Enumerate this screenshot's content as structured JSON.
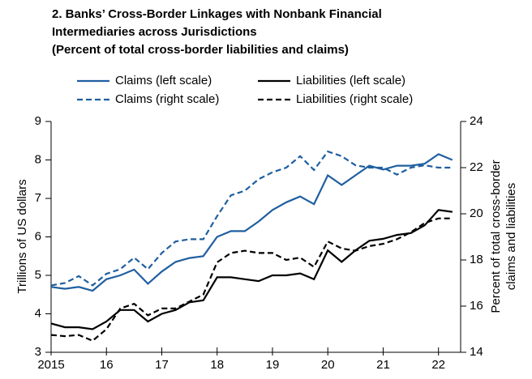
{
  "chart_data": {
    "type": "line",
    "title": [
      "2. Banks’ Cross-Border Linkages with Nonbank Financial",
      "Intermediaries across Jurisdictions",
      "(Percent of total cross-border liabilities and claims)"
    ],
    "ylabel": "Trillions of US dollars",
    "y2label": [
      "Percent of total cross-border",
      "claims and liabilities"
    ],
    "x": [
      2015,
      2015.25,
      2015.5,
      2015.75,
      2016,
      2016.25,
      2016.5,
      2016.75,
      2017,
      2017.25,
      2017.5,
      2017.75,
      2018,
      2018.25,
      2018.5,
      2018.75,
      2019,
      2019.25,
      2019.5,
      2019.75,
      2020,
      2020.25,
      2020.5,
      2020.75,
      2021,
      2021.25,
      2021.5,
      2021.75,
      2022,
      2022.25
    ],
    "xlim": [
      2015,
      2022.4
    ],
    "xticks": [
      2015,
      {
        "value": 2016,
        "label": "16"
      },
      {
        "value": 2017,
        "label": "17"
      },
      {
        "value": 2018,
        "label": "18"
      },
      {
        "value": 2019,
        "label": "19"
      },
      {
        "value": 2020,
        "label": "20"
      },
      {
        "value": 2021,
        "label": "21"
      },
      {
        "value": 2022,
        "label": "22"
      }
    ],
    "ylim": [
      3,
      9
    ],
    "yticks": [
      3,
      4,
      5,
      6,
      7,
      8,
      9
    ],
    "y2lim": [
      14,
      24
    ],
    "y2ticks": [
      14,
      16,
      18,
      20,
      22,
      24
    ],
    "legend": "top",
    "series": [
      {
        "name": "Claims (left scale)",
        "color": "#1f5fa0",
        "dashed": false,
        "values": [
          4.7,
          4.65,
          4.7,
          4.6,
          4.9,
          5.0,
          5.15,
          4.78,
          5.1,
          5.35,
          5.45,
          5.5,
          6.0,
          6.15,
          6.15,
          6.4,
          6.7,
          6.9,
          7.05,
          6.85,
          7.6,
          7.35,
          7.6,
          7.85,
          7.75,
          7.85,
          7.85,
          7.9,
          8.15,
          8.0
        ]
      },
      {
        "name": "Liabilities (left scale)",
        "color": "#000000",
        "dashed": false,
        "values": [
          3.75,
          3.65,
          3.65,
          3.6,
          3.8,
          4.1,
          4.1,
          3.8,
          4.0,
          4.1,
          4.3,
          4.35,
          4.95,
          4.95,
          4.9,
          4.85,
          5.0,
          5.0,
          5.05,
          4.9,
          5.65,
          5.35,
          5.65,
          5.9,
          5.95,
          6.05,
          6.1,
          6.3,
          6.7,
          6.65
        ]
      },
      {
        "name": "Claims (right scale)",
        "color": "#1f5fa0",
        "dashed": true,
        "axis": "y2",
        "values": [
          16.9,
          17.0,
          17.3,
          16.9,
          17.4,
          17.6,
          18.1,
          17.6,
          18.3,
          18.8,
          18.9,
          18.9,
          19.9,
          20.8,
          21.0,
          21.5,
          21.8,
          22.0,
          22.5,
          21.9,
          22.7,
          22.5,
          22.1,
          22.0,
          22.0,
          21.7,
          22.0,
          22.1,
          22.0,
          22.0
        ]
      },
      {
        "name": "Liabilities (right scale)",
        "color": "#000000",
        "dashed": true,
        "axis": "y2",
        "values": [
          14.75,
          14.7,
          14.75,
          14.5,
          15.0,
          15.9,
          16.1,
          15.6,
          15.9,
          15.9,
          16.2,
          16.5,
          17.9,
          18.3,
          18.4,
          18.3,
          18.3,
          18.0,
          18.1,
          17.7,
          18.8,
          18.5,
          18.4,
          18.6,
          18.7,
          18.9,
          19.2,
          19.6,
          19.8,
          19.8
        ]
      }
    ]
  }
}
